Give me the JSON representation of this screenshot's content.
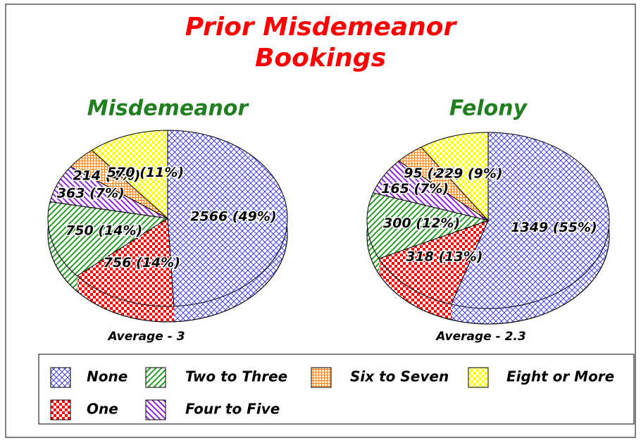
{
  "title": [
    "Prior Misdemeanor",
    "Bookings"
  ],
  "legend": {
    "entries": [
      "None",
      "One",
      "Two to Three",
      "Four to Five",
      "Six to Seven",
      "Eight or More"
    ]
  },
  "chart_data": [
    {
      "type": "pie",
      "title": "Misdemeanor",
      "annotation": "Average - 3",
      "values": [
        2566,
        756,
        750,
        363,
        214,
        570
      ],
      "value_labels": [
        "2566 (49%)",
        "756 (14%)",
        "750 (14%)",
        "363 (7%)",
        "214 (4%)",
        "570 (11%)"
      ],
      "colors": [
        "#4040ff",
        "#ff0000",
        "#20a020",
        "#9020e0",
        "#ff8020",
        "#ffff00"
      ]
    },
    {
      "type": "pie",
      "title": "Felony",
      "annotation": "Average - 2.3",
      "values": [
        1349,
        318,
        300,
        165,
        95,
        229
      ],
      "value_labels": [
        "1349 (55%)",
        "318 (13%)",
        "300 (12%)",
        "165 (7%)",
        "95 (4%)",
        "229 (9%)"
      ],
      "colors": [
        "#4040ff",
        "#ff0000",
        "#20a020",
        "#9020e0",
        "#ff8020",
        "#ffff00"
      ]
    }
  ]
}
